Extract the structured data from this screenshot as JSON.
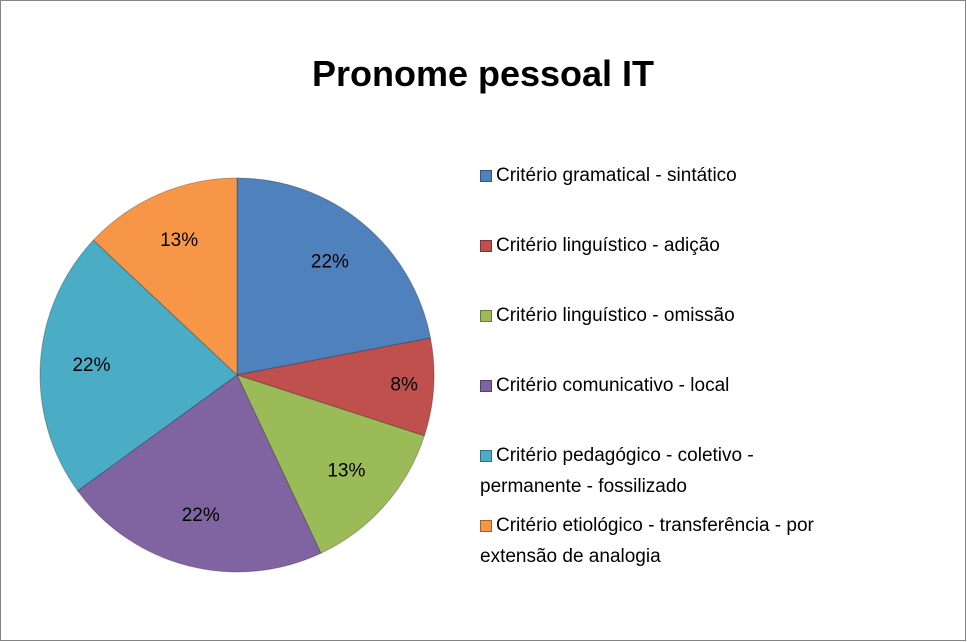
{
  "chart_data": {
    "type": "pie",
    "title": "Pronome pessoal IT",
    "categories": [
      "Critério gramatical - sintático",
      "Critério linguístico - adição",
      "Critério linguístico - omissão",
      "Critério comunicativo - local",
      "Critério pedagógico - coletivo - permanente - fossilizado",
      "Critério etiológico - transferência - por extensão de analogia"
    ],
    "values": [
      22,
      8,
      13,
      22,
      22,
      13
    ],
    "value_labels": [
      "22%",
      "8%",
      "13%",
      "22%",
      "22%",
      "13%"
    ],
    "colors": [
      "#4f81bd",
      "#c0504d",
      "#9bbb59",
      "#8064a2",
      "#4bacc6",
      "#f79646"
    ],
    "legend": "right"
  }
}
